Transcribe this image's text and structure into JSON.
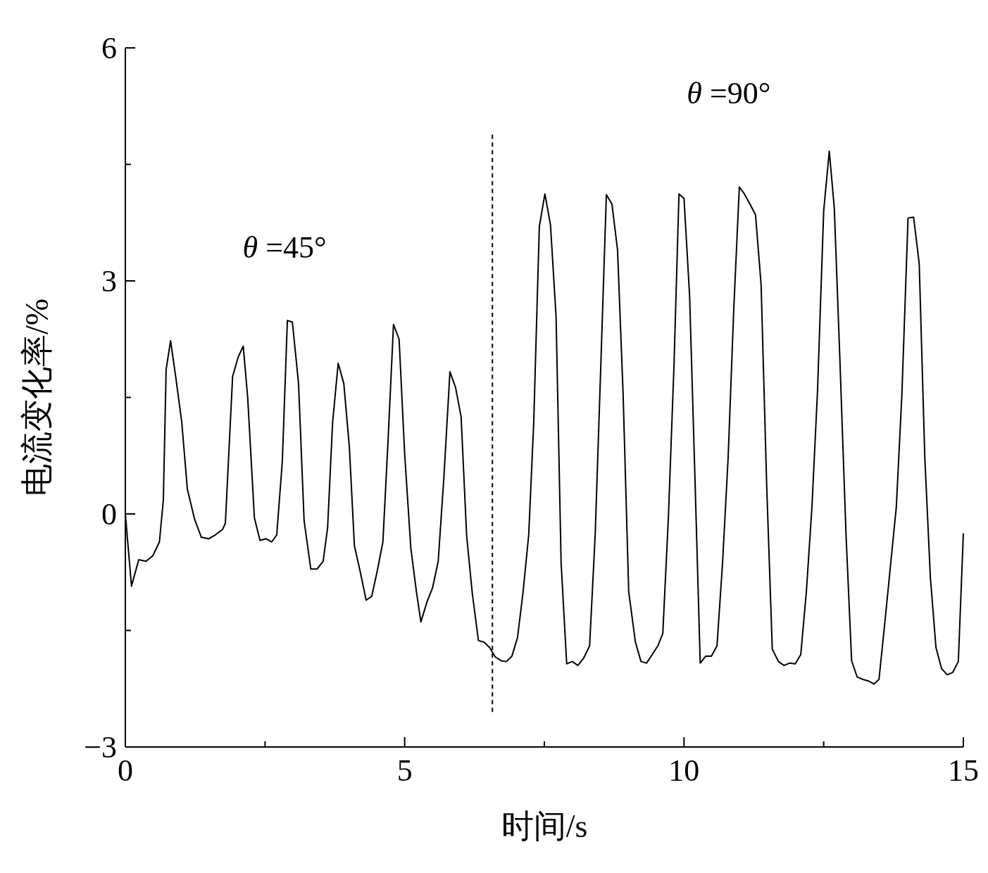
{
  "chart_data": {
    "type": "line",
    "xlabel": "时间/s",
    "ylabel": "电流变化率/%",
    "xlim": [
      0,
      15
    ],
    "ylim": [
      -3,
      6
    ],
    "xticks": [
      0,
      {
        "value": 2.5,
        "label": null
      },
      5,
      {
        "value": 7.5,
        "label": null
      },
      10,
      {
        "value": 12.5,
        "label": null
      },
      15
    ],
    "yticks": [
      {
        "value": -3,
        "label": "−3"
      },
      {
        "value": -1.5,
        "label": null
      },
      0,
      {
        "value": 1.5,
        "label": null
      },
      3,
      {
        "value": 4.5,
        "label": null
      },
      6
    ],
    "grid": false,
    "marker": "none",
    "line_style": "solid",
    "annotations": [
      "θ =45°",
      "θ =90°"
    ],
    "ref_lines": [
      {
        "axis": "x",
        "value": 6.57,
        "line_style": "dashed",
        "color": "#000000"
      }
    ],
    "series": [
      {
        "color": "#000000",
        "x": [
          0,
          0.11,
          0.24,
          0.37,
          0.49,
          0.61,
          0.68,
          0.73,
          0.81,
          0.91,
          1.01,
          1.11,
          1.24,
          1.36,
          1.49,
          1.61,
          1.74,
          1.79,
          1.92,
          2.02,
          2.11,
          2.19,
          2.31,
          2.41,
          2.52,
          2.62,
          2.71,
          2.81,
          2.9,
          2.99,
          3.1,
          3.2,
          3.32,
          3.43,
          3.54,
          3.62,
          3.71,
          3.81,
          3.91,
          4.01,
          4.1,
          4.2,
          4.31,
          4.41,
          4.51,
          4.61,
          4.7,
          4.8,
          4.9,
          5,
          5.11,
          5.21,
          5.29,
          5.4,
          5.5,
          5.6,
          5.7,
          5.81,
          5.91,
          6.01,
          6.11,
          6.21,
          6.32,
          6.42,
          6.52,
          6.62,
          6.73,
          6.82,
          6.92,
          7.02,
          7.12,
          7.22,
          7.31,
          7.41,
          7.51,
          7.61,
          7.71,
          7.8,
          7.9,
          8,
          8.1,
          8.2,
          8.31,
          8.41,
          8.51,
          8.61,
          8.71,
          8.81,
          8.91,
          9.01,
          9.13,
          9.23,
          9.33,
          9.43,
          9.53,
          9.62,
          9.72,
          9.82,
          9.91,
          10,
          10.1,
          10.2,
          10.29,
          10.39,
          10.49,
          10.59,
          10.69,
          10.79,
          10.89,
          10.99,
          11.08,
          11.18,
          11.28,
          11.38,
          11.48,
          11.58,
          11.69,
          11.79,
          11.89,
          11.99,
          12.09,
          12.19,
          12.29,
          12.39,
          12.5,
          12.6,
          12.69,
          12.79,
          12.9,
          13,
          13.1,
          13.2,
          13.3,
          13.4,
          13.49,
          13.6,
          13.8,
          13.9,
          14.01,
          14.11,
          14.21,
          14.31,
          14.41,
          14.51,
          14.61,
          14.71,
          14.81,
          14.91,
          15
        ],
        "values": [
          0,
          -0.93,
          -0.59,
          -0.61,
          -0.54,
          -0.36,
          0.18,
          1.86,
          2.23,
          1.72,
          1.18,
          0.32,
          -0.07,
          -0.3,
          -0.32,
          -0.27,
          -0.2,
          -0.12,
          1.77,
          2.02,
          2.16,
          1.5,
          -0.05,
          -0.34,
          -0.32,
          -0.36,
          -0.27,
          0.68,
          2.49,
          2.47,
          1.68,
          -0.09,
          -0.71,
          -0.71,
          -0.61,
          -0.18,
          1.18,
          1.94,
          1.68,
          0.86,
          -0.41,
          -0.73,
          -1.11,
          -1.06,
          -0.73,
          -0.36,
          0.91,
          2.44,
          2.25,
          0.77,
          -0.44,
          -1,
          -1.39,
          -1.13,
          -0.95,
          -0.61,
          0.45,
          1.83,
          1.63,
          1.25,
          -0.29,
          -1.02,
          -1.63,
          -1.65,
          -1.72,
          -1.84,
          -1.89,
          -1.9,
          -1.83,
          -1.59,
          -1,
          -0.27,
          1.18,
          3.7,
          4.12,
          3.72,
          2.54,
          -0.63,
          -1.93,
          -1.9,
          -1.95,
          -1.86,
          -1.7,
          -0.27,
          1.9,
          4.11,
          3.99,
          3.4,
          1.54,
          -1,
          -1.65,
          -1.9,
          -1.92,
          -1.81,
          -1.7,
          -1.54,
          -0.05,
          1.9,
          4.12,
          4.06,
          2.81,
          0.36,
          -1.92,
          -1.83,
          -1.83,
          -1.7,
          -0.63,
          0.73,
          2.63,
          4.21,
          4.12,
          3.99,
          3.85,
          2.95,
          0.36,
          -1.74,
          -1.9,
          -1.95,
          -1.92,
          -1.93,
          -1.81,
          -1,
          0.09,
          1.59,
          3.9,
          4.67,
          3.94,
          1.99,
          -0.27,
          -1.89,
          -2.1,
          -2.13,
          -2.15,
          -2.19,
          -2.13,
          -1.36,
          0.09,
          1.54,
          3.81,
          3.82,
          3.22,
          0.73,
          -0.82,
          -1.72,
          -1.99,
          -2.07,
          -2.04,
          -1.9,
          -0.25
        ]
      }
    ]
  }
}
